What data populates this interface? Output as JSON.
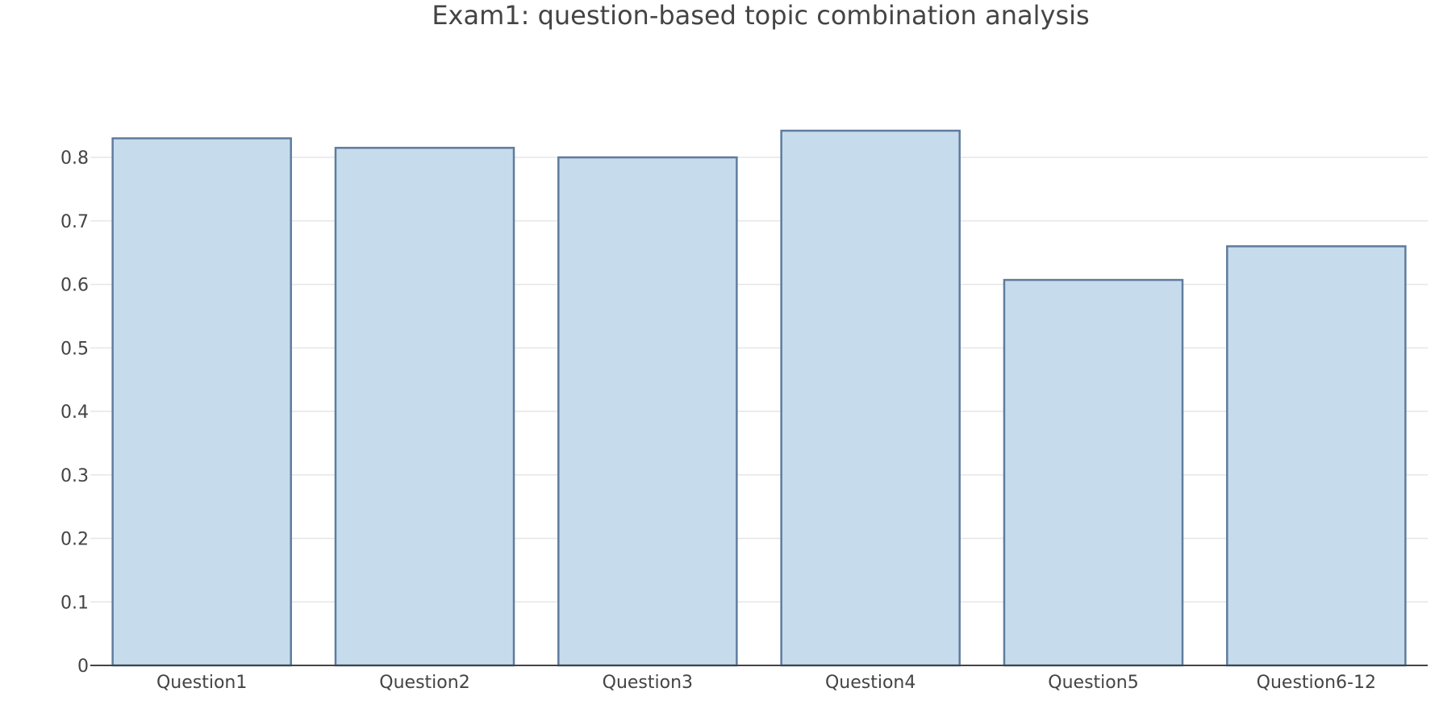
{
  "chart_data": {
    "type": "bar",
    "title": "Exam1: question-based topic combination analysis",
    "xlabel": "",
    "ylabel": "",
    "categories": [
      "Question1",
      "Question2",
      "Question3",
      "Question4",
      "Question5",
      "Question6-12"
    ],
    "values": [
      0.83,
      0.815,
      0.8,
      0.842,
      0.607,
      0.66
    ],
    "ylim": [
      0,
      0.87
    ],
    "yticks": [
      0,
      0.1,
      0.2,
      0.3,
      0.4,
      0.5,
      0.6,
      0.7,
      0.8
    ],
    "ytick_labels": [
      "0",
      "0.1",
      "0.2",
      "0.3",
      "0.4",
      "0.5",
      "0.6",
      "0.7",
      "0.8"
    ],
    "grid": true,
    "legend": "none",
    "colors": {
      "bar_fill": "#c6dcec",
      "bar_stroke": "#5f7c9e",
      "text": "#444444"
    }
  }
}
